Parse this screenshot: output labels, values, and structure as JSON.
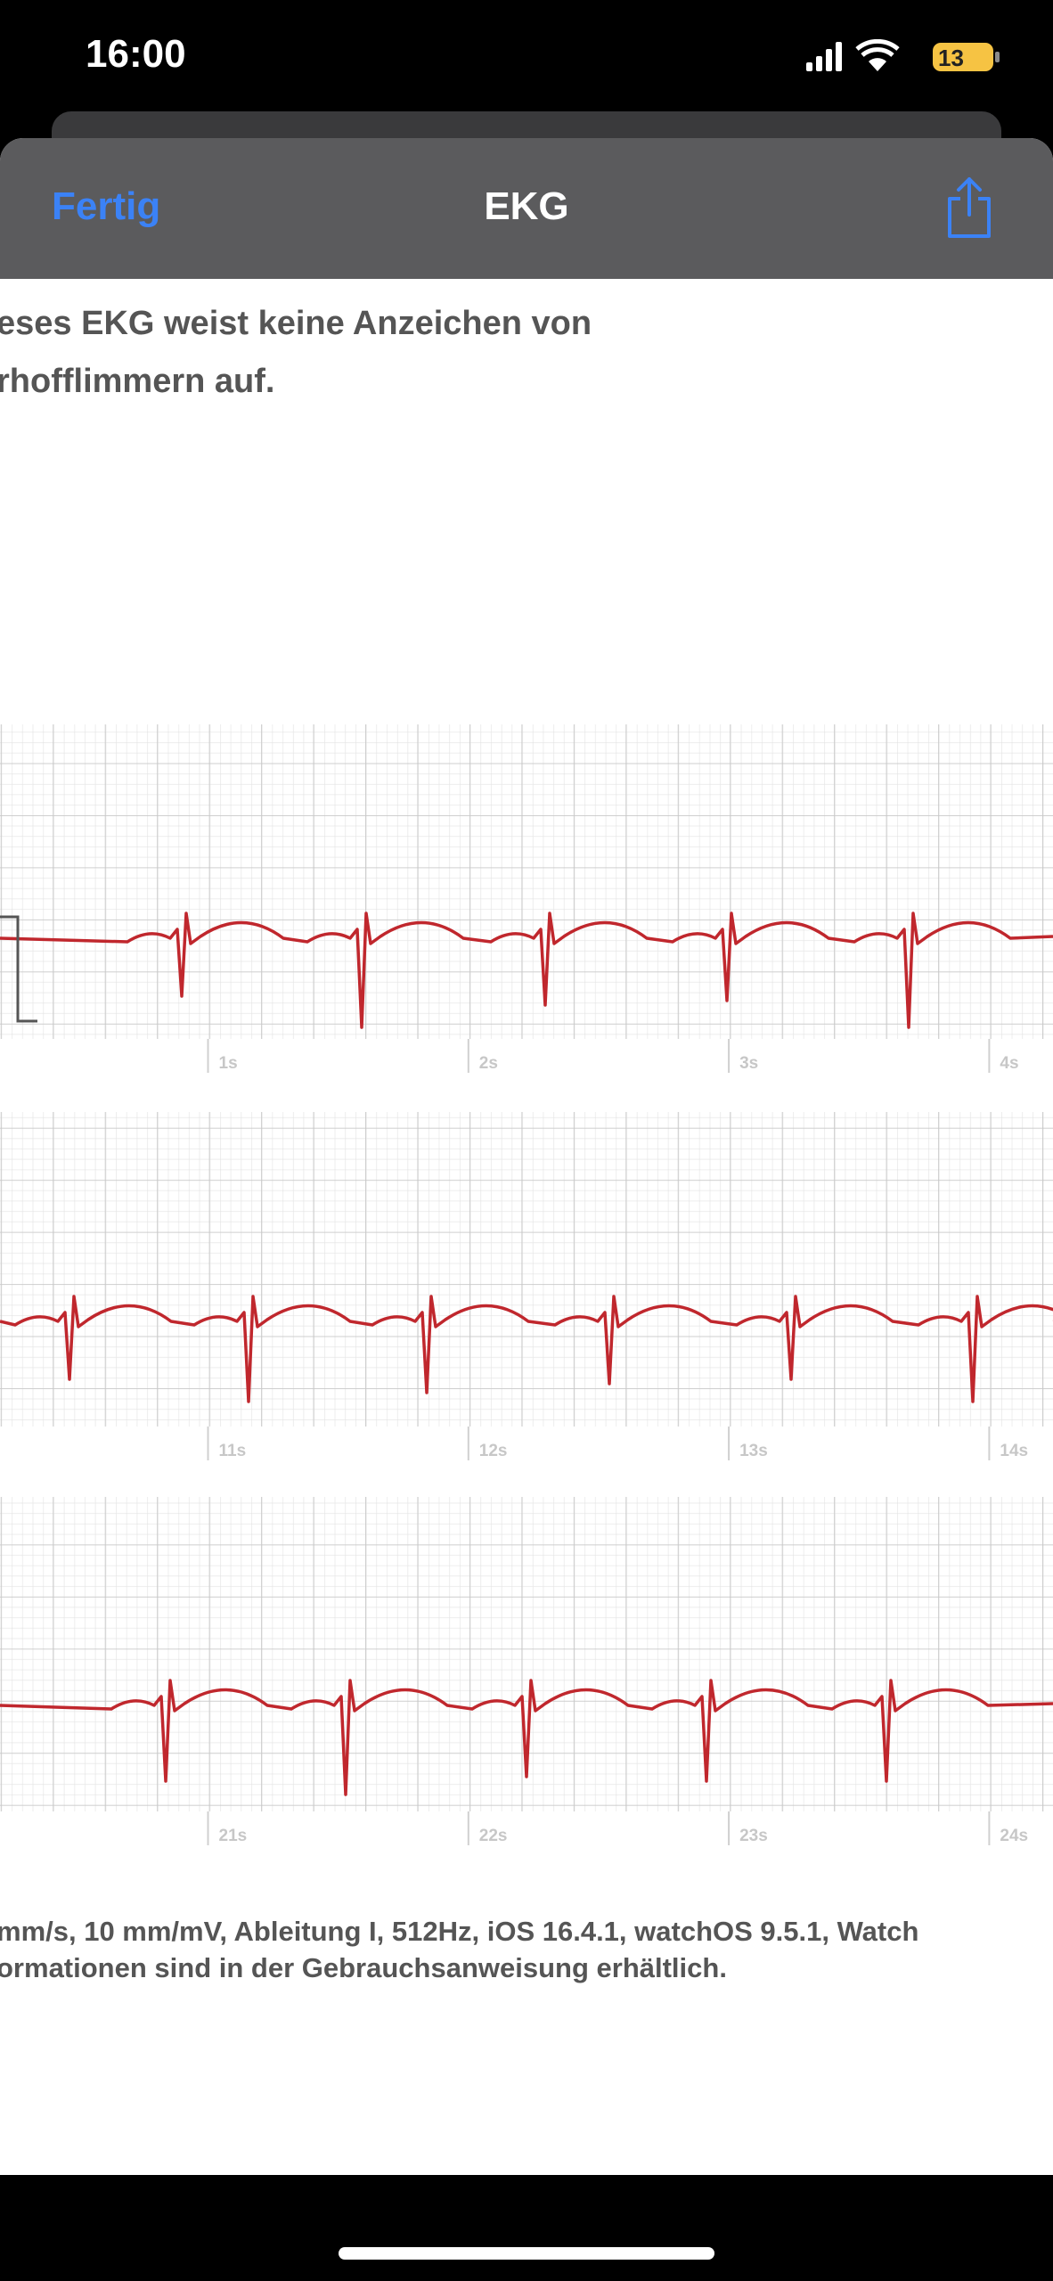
{
  "status_bar": {
    "time": "16:00",
    "battery": "13"
  },
  "nav": {
    "back": "Fertig",
    "title": "EKG"
  },
  "summary": [
    "eses EKG weist keine Anzeichen von",
    "rhofflimmern auf."
  ],
  "strips": [
    {
      "labels": [
        "1s",
        "2s",
        "3s",
        "4s"
      ]
    },
    {
      "labels": [
        "11s",
        "12s",
        "13s",
        "14s"
      ]
    },
    {
      "labels": [
        "21s",
        "22s",
        "23s",
        "24s"
      ]
    }
  ],
  "footer": [
    "mm/s, 10 mm/mV, Ableitung I, 512Hz, iOS 16.4.1, watchOS 9.5.1, Watch",
    "ormationen sind in der Gebrauchsanweisung erhältlich."
  ]
}
